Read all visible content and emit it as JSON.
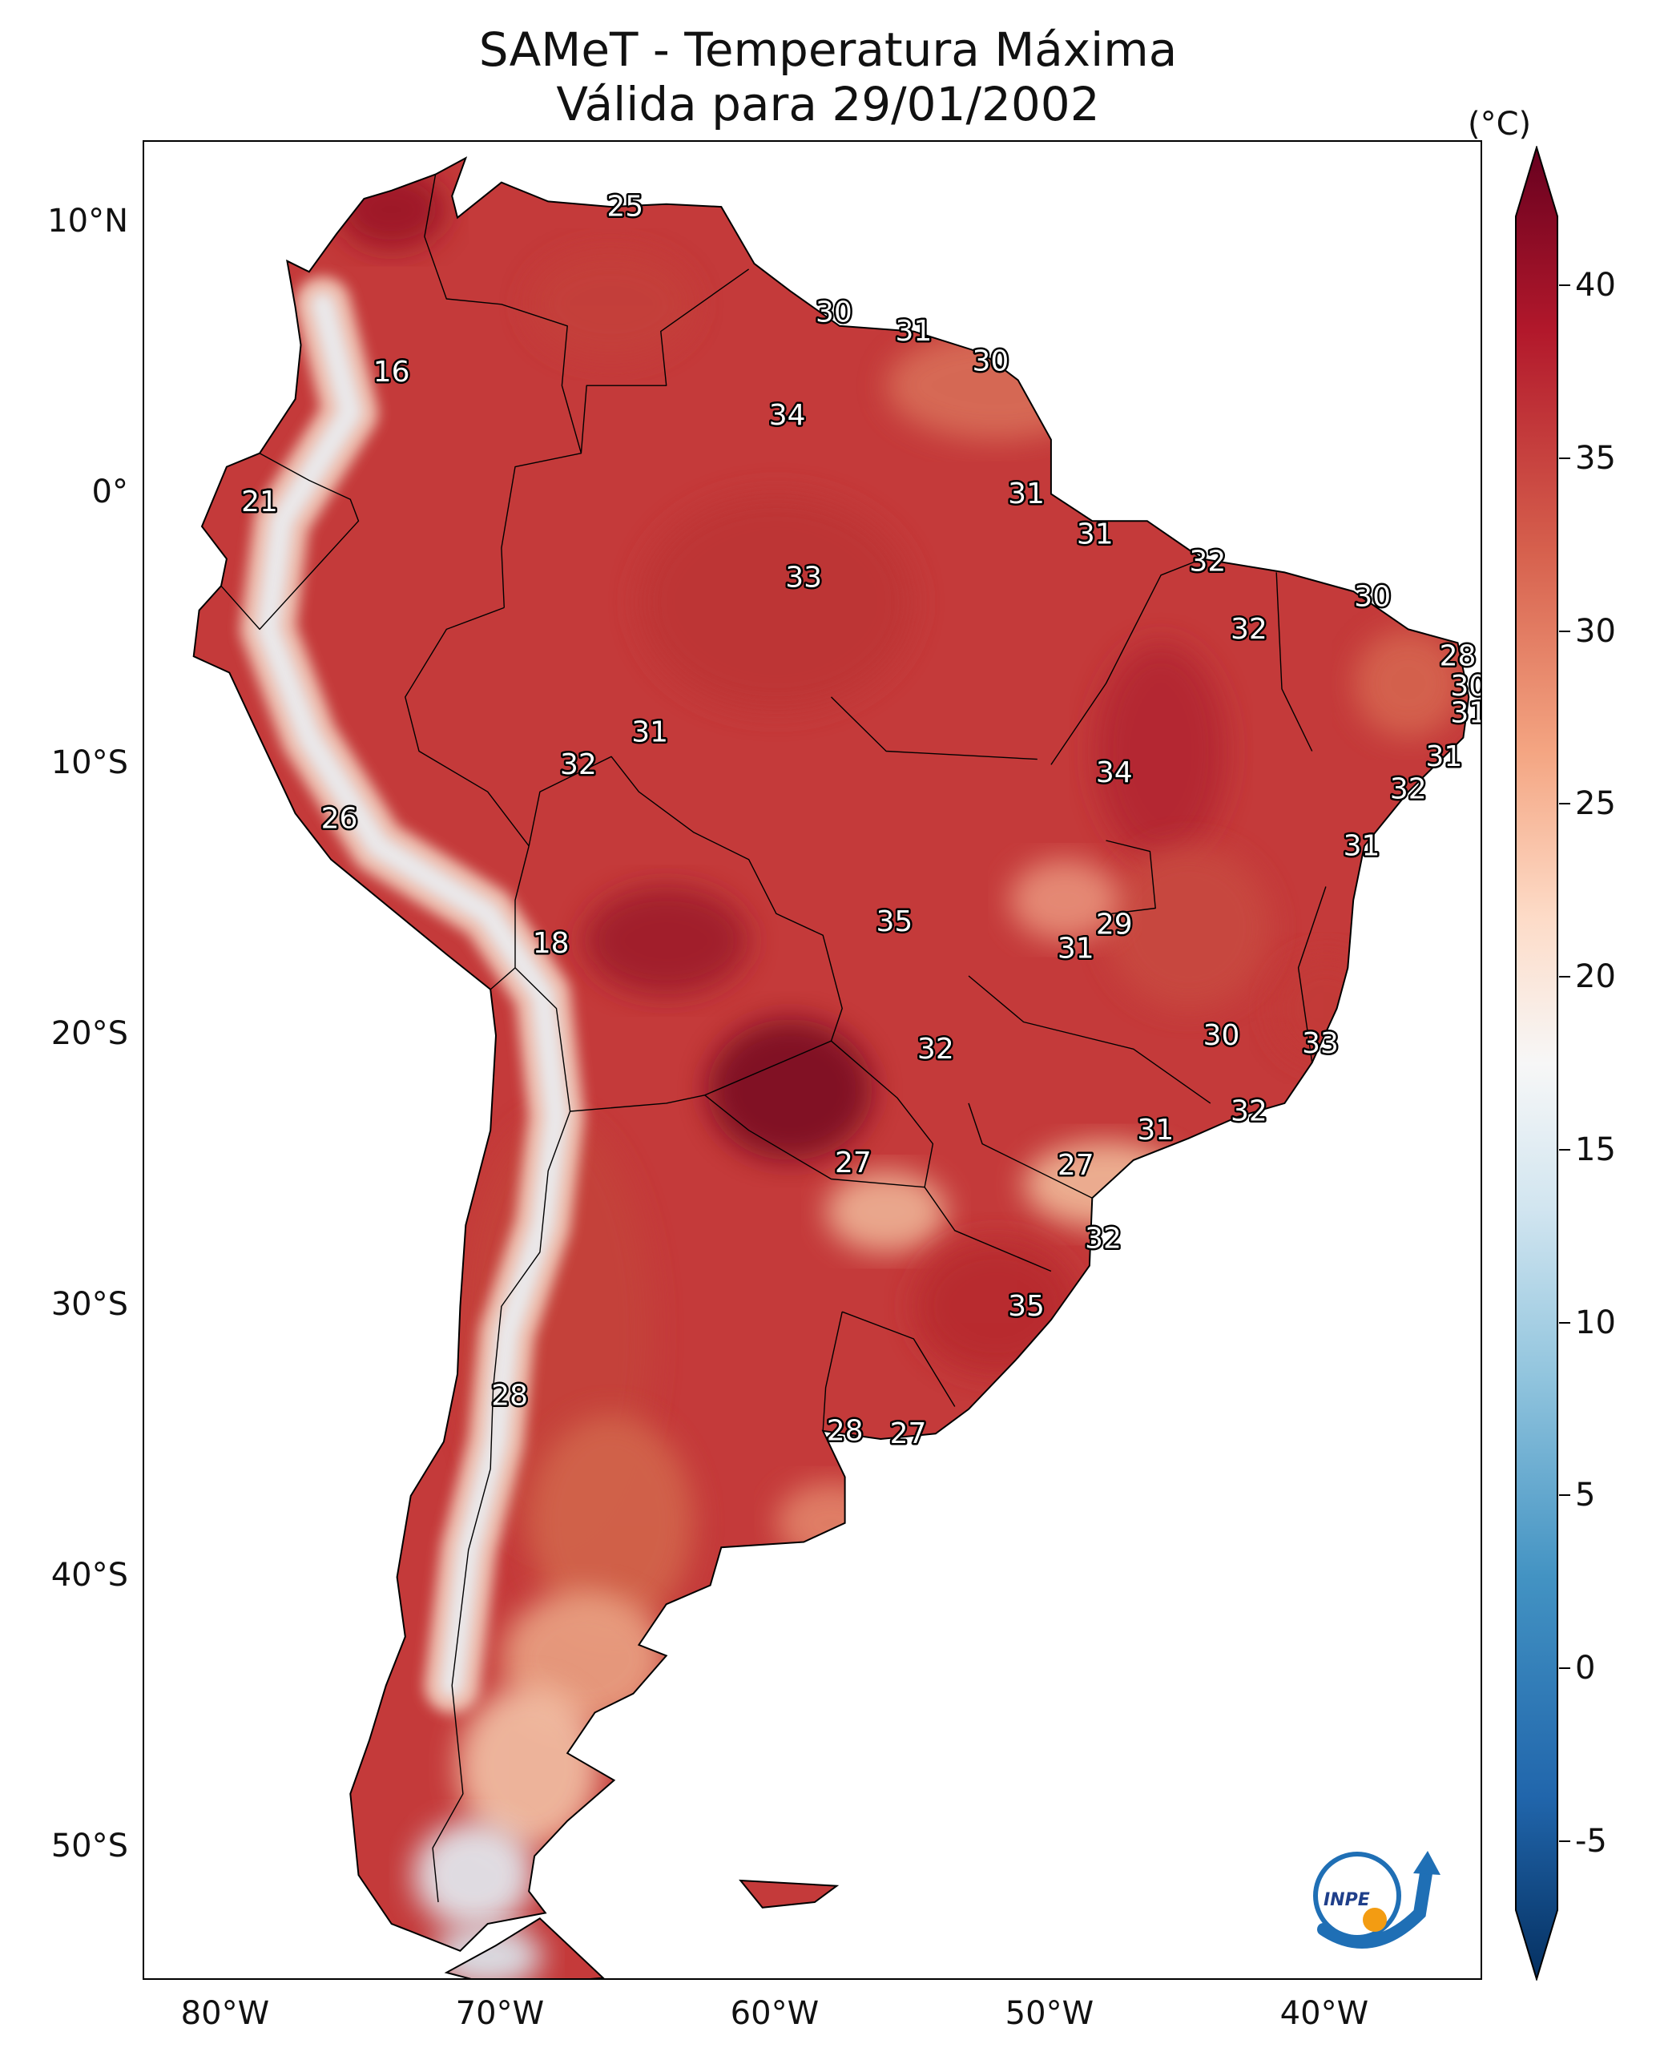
{
  "map": {
    "title_line1": "SAMeT - Temperatura Máxima",
    "title_line2": "Válida para 29/01/2002",
    "lat_ticks": [
      "10°N",
      "0°",
      "10°S",
      "20°S",
      "30°S",
      "40°S",
      "50°S"
    ],
    "lon_ticks": [
      "80°W",
      "70°W",
      "60°W",
      "50°W",
      "40°W"
    ],
    "colorbar": {
      "unit": "(°C)",
      "range": [
        -7,
        42
      ],
      "tick_labels": [
        "-5",
        "0",
        "5",
        "10",
        "15",
        "20",
        "25",
        "30",
        "35",
        "40"
      ],
      "colormap": "RdBu_r",
      "extend": "both"
    },
    "labels": [
      {
        "value": "25",
        "lon": -65.5,
        "lat": 10.6
      },
      {
        "value": "16",
        "lon": -74.0,
        "lat": 4.5
      },
      {
        "value": "30",
        "lon": -57.9,
        "lat": 6.7
      },
      {
        "value": "31",
        "lon": -55.0,
        "lat": 6.0
      },
      {
        "value": "30",
        "lon": -52.2,
        "lat": 4.9
      },
      {
        "value": "34",
        "lon": -59.6,
        "lat": 2.9
      },
      {
        "value": "21",
        "lon": -78.8,
        "lat": -0.3
      },
      {
        "value": "31",
        "lon": -50.9,
        "lat": 0.0
      },
      {
        "value": "31",
        "lon": -48.4,
        "lat": -1.5
      },
      {
        "value": "32",
        "lon": -44.3,
        "lat": -2.5
      },
      {
        "value": "33",
        "lon": -59.0,
        "lat": -3.1
      },
      {
        "value": "30",
        "lon": -38.3,
        "lat": -3.8
      },
      {
        "value": "32",
        "lon": -42.8,
        "lat": -5.0
      },
      {
        "value": "28",
        "lon": -35.2,
        "lat": -6.0
      },
      {
        "value": "30",
        "lon": -34.8,
        "lat": -7.1
      },
      {
        "value": "31",
        "lon": -34.8,
        "lat": -8.1
      },
      {
        "value": "31",
        "lon": -64.6,
        "lat": -8.8
      },
      {
        "value": "32",
        "lon": -67.2,
        "lat": -10.0
      },
      {
        "value": "34",
        "lon": -47.7,
        "lat": -10.3
      },
      {
        "value": "31",
        "lon": -35.7,
        "lat": -9.7
      },
      {
        "value": "32",
        "lon": -37.0,
        "lat": -10.9
      },
      {
        "value": "26",
        "lon": -75.9,
        "lat": -12.0
      },
      {
        "value": "31",
        "lon": -38.7,
        "lat": -13.0
      },
      {
        "value": "35",
        "lon": -55.7,
        "lat": -15.8
      },
      {
        "value": "29",
        "lon": -47.7,
        "lat": -15.9
      },
      {
        "value": "31",
        "lon": -49.1,
        "lat": -16.8
      },
      {
        "value": "18",
        "lon": -68.2,
        "lat": -16.6
      },
      {
        "value": "30",
        "lon": -43.8,
        "lat": -20.0
      },
      {
        "value": "33",
        "lon": -40.2,
        "lat": -20.3
      },
      {
        "value": "32",
        "lon": -54.2,
        "lat": -20.5
      },
      {
        "value": "32",
        "lon": -42.8,
        "lat": -22.8
      },
      {
        "value": "31",
        "lon": -46.2,
        "lat": -23.5
      },
      {
        "value": "27",
        "lon": -57.2,
        "lat": -24.7
      },
      {
        "value": "27",
        "lon": -49.1,
        "lat": -24.8
      },
      {
        "value": "32",
        "lon": -48.1,
        "lat": -27.5
      },
      {
        "value": "35",
        "lon": -50.9,
        "lat": -30.0
      },
      {
        "value": "28",
        "lon": -69.7,
        "lat": -33.3
      },
      {
        "value": "28",
        "lon": -57.5,
        "lat": -34.6
      },
      {
        "value": "27",
        "lon": -55.2,
        "lat": -34.7
      }
    ]
  },
  "logo": {
    "text": "INPE"
  }
}
